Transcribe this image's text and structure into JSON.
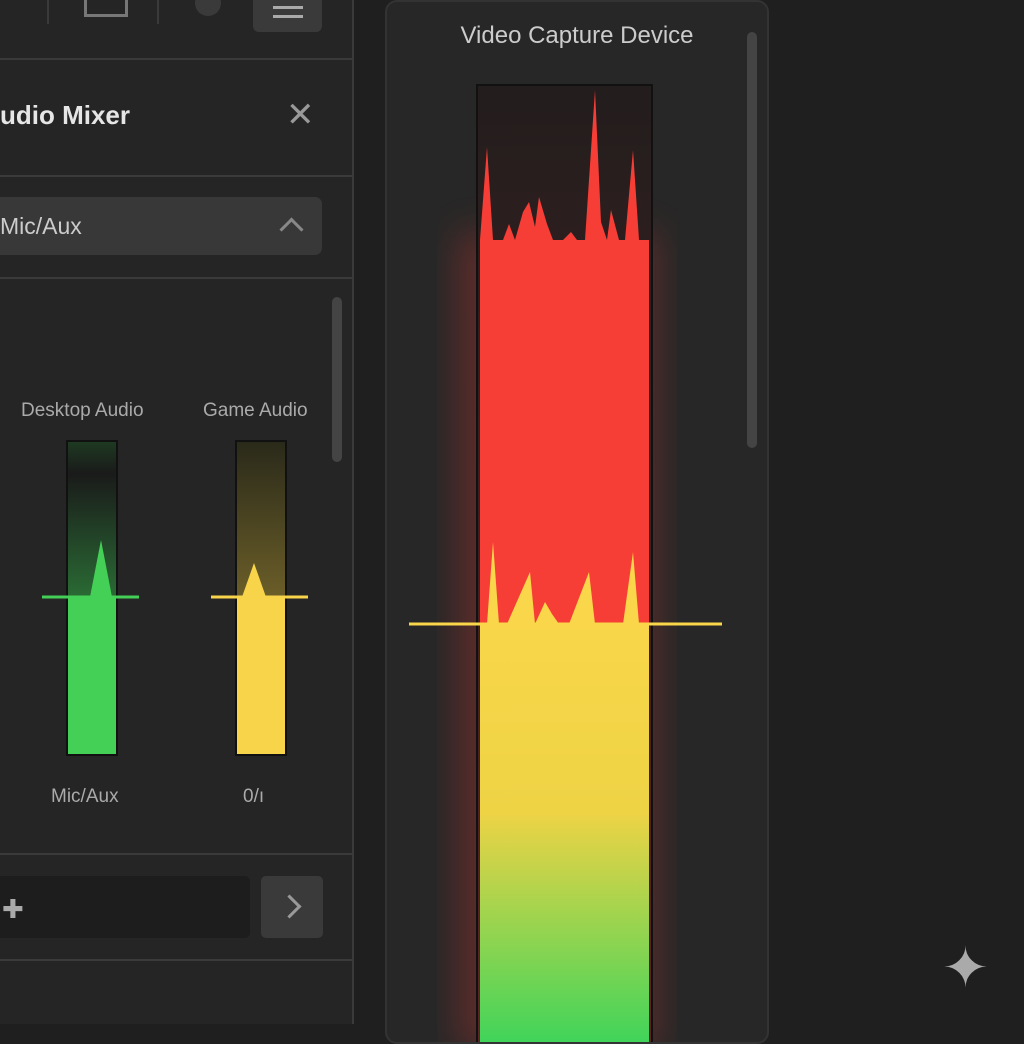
{
  "audio_mixer": {
    "title": "udio Mixer",
    "close_icon": "close-icon",
    "source_select": {
      "value": "Mic/Aux",
      "icon": "chevron-up-icon"
    },
    "channels": [
      {
        "name": "Desktop Audio",
        "footer": "Mic/Aux",
        "color": "#44d056",
        "level": 0.5
      },
      {
        "name": "Game Audio",
        "footer": "0/ı",
        "color": "#f8d44a",
        "level": 0.5
      }
    ],
    "input": {
      "icon": "puzzle-icon",
      "value": ""
    },
    "go_button_icon": "chevron-right-icon"
  },
  "video_capture": {
    "title": "Video Capture Device",
    "colors": {
      "low": "#3fd45a",
      "mid": "#f9d64a",
      "high": "#f73e36"
    }
  }
}
